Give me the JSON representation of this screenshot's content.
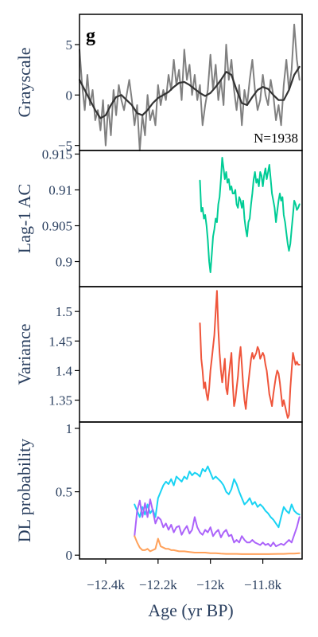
{
  "panel_label": "g",
  "x_axis": {
    "label": "Age (yr BP)",
    "range": [
      -12.5,
      -11.65
    ],
    "tick_values": [
      -12.4,
      -12.2,
      -12.0,
      -11.8
    ],
    "tick_labels": [
      "−12.4k",
      "−12.2k",
      "−12k",
      "−11.8k"
    ]
  },
  "chart_data": [
    {
      "type": "line",
      "panel": "grayscale",
      "ylabel": "Grayscale",
      "ylim": [
        -5.5,
        8
      ],
      "yticks": [
        -5,
        0,
        5
      ],
      "ytick_labels": [
        "−5",
        "0",
        "5"
      ],
      "annotation": "N=1938",
      "series": [
        {
          "color": "#808080",
          "x": [
            -12.5,
            -12.49,
            -12.48,
            -12.47,
            -12.46,
            -12.45,
            -12.44,
            -12.43,
            -12.42,
            -12.41,
            -12.4,
            -12.39,
            -12.38,
            -12.37,
            -12.36,
            -12.35,
            -12.34,
            -12.33,
            -12.32,
            -12.31,
            -12.3,
            -12.29,
            -12.28,
            -12.27,
            -12.26,
            -12.25,
            -12.24,
            -12.23,
            -12.22,
            -12.21,
            -12.2,
            -12.19,
            -12.18,
            -12.17,
            -12.16,
            -12.15,
            -12.14,
            -12.13,
            -12.12,
            -12.11,
            -12.1,
            -12.09,
            -12.08,
            -12.07,
            -12.06,
            -12.05,
            -12.04,
            -12.03,
            -12.02,
            -12.01,
            -12.0,
            -11.99,
            -11.98,
            -11.97,
            -11.96,
            -11.95,
            -11.94,
            -11.93,
            -11.92,
            -11.91,
            -11.9,
            -11.89,
            -11.88,
            -11.87,
            -11.86,
            -11.85,
            -11.84,
            -11.83,
            -11.82,
            -11.81,
            -11.8,
            -11.79,
            -11.78,
            -11.77,
            -11.76,
            -11.75,
            -11.74,
            -11.73,
            -11.72,
            -11.71,
            -11.7,
            -11.69,
            -11.68,
            -11.67,
            -11.66
          ],
          "y": [
            4.5,
            1.0,
            -1.5,
            2.0,
            -1.0,
            0.5,
            -2.5,
            -1.5,
            -3.5,
            -0.5,
            -5.0,
            -1.0,
            -4.0,
            0.5,
            -2.0,
            1.0,
            -0.5,
            -1.5,
            0.0,
            1.5,
            -0.5,
            -3.0,
            -1.0,
            -5.5,
            -2.0,
            -4.0,
            0.0,
            -2.5,
            -1.5,
            -3.0,
            1.0,
            -1.0,
            0.5,
            -0.5,
            2.0,
            0.5,
            3.5,
            1.0,
            2.5,
            -0.5,
            4.5,
            1.5,
            3.0,
            0.0,
            2.0,
            -0.5,
            1.0,
            -3.0,
            -1.0,
            0.5,
            4.0,
            0.5,
            3.0,
            -0.5,
            1.5,
            -1.0,
            5.0,
            1.5,
            3.5,
            0.5,
            -1.5,
            1.0,
            -3.0,
            0.5,
            -1.0,
            1.5,
            3.5,
            0.5,
            -1.5,
            -0.5,
            2.0,
            0.0,
            -1.0,
            1.5,
            0.0,
            -2.5,
            -1.0,
            -3.0,
            1.0,
            3.5,
            0.5,
            2.5,
            7.0,
            3.5,
            1.5
          ]
        },
        {
          "color": "#333333",
          "x": [
            -12.5,
            -12.48,
            -12.46,
            -12.44,
            -12.42,
            -12.4,
            -12.38,
            -12.36,
            -12.34,
            -12.32,
            -12.3,
            -12.28,
            -12.26,
            -12.24,
            -12.22,
            -12.2,
            -12.18,
            -12.16,
            -12.14,
            -12.12,
            -12.1,
            -12.08,
            -12.06,
            -12.04,
            -12.02,
            -12.0,
            -11.98,
            -11.96,
            -11.94,
            -11.92,
            -11.9,
            -11.88,
            -11.86,
            -11.84,
            -11.82,
            -11.8,
            -11.78,
            -11.76,
            -11.74,
            -11.72,
            -11.7,
            -11.68,
            -11.66
          ],
          "y": [
            1.5,
            0.5,
            -0.5,
            -1.5,
            -2.3,
            -2.0,
            -1.0,
            -0.2,
            0.0,
            -0.5,
            -1.0,
            -1.8,
            -2.0,
            -1.5,
            -0.8,
            -0.3,
            0.0,
            0.3,
            0.8,
            1.2,
            1.3,
            1.0,
            0.6,
            0.2,
            -0.1,
            0.2,
            0.8,
            1.5,
            2.3,
            2.0,
            0.5,
            -0.8,
            -1.0,
            -0.2,
            0.5,
            0.8,
            0.6,
            0.0,
            -0.5,
            -0.5,
            0.5,
            2.0,
            2.8
          ]
        }
      ]
    },
    {
      "type": "line",
      "panel": "lag1",
      "ylabel": "Lag-1 AC",
      "ylim": [
        0.8965,
        0.9155
      ],
      "yticks": [
        0.9,
        0.905,
        0.91,
        0.915
      ],
      "ytick_labels": [
        "0.9",
        "0.905",
        "0.91",
        "0.915"
      ],
      "series": [
        {
          "color": "#00cc96",
          "x": [
            -12.04,
            -12.035,
            -12.03,
            -12.025,
            -12.02,
            -12.015,
            -12.01,
            -12.005,
            -12.0,
            -11.995,
            -11.99,
            -11.985,
            -11.98,
            -11.975,
            -11.97,
            -11.965,
            -11.96,
            -11.955,
            -11.95,
            -11.945,
            -11.94,
            -11.935,
            -11.93,
            -11.925,
            -11.92,
            -11.915,
            -11.91,
            -11.905,
            -11.9,
            -11.895,
            -11.89,
            -11.885,
            -11.88,
            -11.875,
            -11.87,
            -11.865,
            -11.86,
            -11.855,
            -11.85,
            -11.845,
            -11.84,
            -11.835,
            -11.83,
            -11.825,
            -11.82,
            -11.815,
            -11.81,
            -11.805,
            -11.8,
            -11.795,
            -11.79,
            -11.785,
            -11.78,
            -11.775,
            -11.77,
            -11.765,
            -11.76,
            -11.755,
            -11.75,
            -11.745,
            -11.74,
            -11.735,
            -11.73,
            -11.725,
            -11.72,
            -11.715,
            -11.71,
            -11.705,
            -11.7,
            -11.695,
            -11.69,
            -11.685,
            -11.68,
            -11.675,
            -11.67,
            -11.665,
            -11.66
          ],
          "y": [
            0.9113,
            0.907,
            0.9075,
            0.906,
            0.9065,
            0.905,
            0.903,
            0.9,
            0.8985,
            0.901,
            0.9035,
            0.9045,
            0.906,
            0.9055,
            0.908,
            0.909,
            0.9115,
            0.9145,
            0.913,
            0.9115,
            0.9125,
            0.911,
            0.9115,
            0.91,
            0.9105,
            0.9095,
            0.9095,
            0.91,
            0.908,
            0.9075,
            0.909,
            0.9085,
            0.9075,
            0.9085,
            0.906,
            0.9045,
            0.9035,
            0.9055,
            0.906,
            0.908,
            0.9095,
            0.9115,
            0.9125,
            0.911,
            0.9115,
            0.9105,
            0.9125,
            0.912,
            0.9105,
            0.912,
            0.913,
            0.9115,
            0.9125,
            0.9135,
            0.9115,
            0.9095,
            0.9085,
            0.9075,
            0.9055,
            0.907,
            0.9085,
            0.9095,
            0.9085,
            0.909,
            0.9065,
            0.9055,
            0.904,
            0.9025,
            0.9015,
            0.9025,
            0.9045,
            0.9065,
            0.9085,
            0.908,
            0.9072,
            0.9075,
            0.908
          ]
        }
      ]
    },
    {
      "type": "line",
      "panel": "variance",
      "ylabel": "Variance",
      "ylim": [
        1.313,
        1.542
      ],
      "yticks": [
        1.35,
        1.4,
        1.45,
        1.5
      ],
      "ytick_labels": [
        "1.35",
        "1.4",
        "1.45",
        "1.5"
      ],
      "series": [
        {
          "color": "#ef553b",
          "x": [
            -12.04,
            -12.035,
            -12.03,
            -12.025,
            -12.02,
            -12.015,
            -12.01,
            -12.005,
            -12.0,
            -11.995,
            -11.99,
            -11.985,
            -11.98,
            -11.975,
            -11.97,
            -11.965,
            -11.96,
            -11.955,
            -11.95,
            -11.945,
            -11.94,
            -11.935,
            -11.93,
            -11.925,
            -11.92,
            -11.915,
            -11.91,
            -11.905,
            -11.9,
            -11.895,
            -11.89,
            -11.885,
            -11.88,
            -11.875,
            -11.87,
            -11.865,
            -11.86,
            -11.855,
            -11.85,
            -11.845,
            -11.84,
            -11.835,
            -11.83,
            -11.825,
            -11.82,
            -11.815,
            -11.81,
            -11.805,
            -11.8,
            -11.795,
            -11.79,
            -11.785,
            -11.78,
            -11.775,
            -11.77,
            -11.765,
            -11.76,
            -11.755,
            -11.75,
            -11.745,
            -11.74,
            -11.735,
            -11.73,
            -11.725,
            -11.72,
            -11.715,
            -11.71,
            -11.705,
            -11.7,
            -11.695,
            -11.69,
            -11.685,
            -11.68,
            -11.675,
            -11.67,
            -11.665,
            -11.66
          ],
          "y": [
            1.48,
            1.42,
            1.4,
            1.37,
            1.38,
            1.36,
            1.35,
            1.37,
            1.4,
            1.42,
            1.44,
            1.46,
            1.5,
            1.535,
            1.47,
            1.43,
            1.4,
            1.38,
            1.4,
            1.42,
            1.37,
            1.36,
            1.39,
            1.41,
            1.43,
            1.38,
            1.34,
            1.35,
            1.37,
            1.39,
            1.42,
            1.44,
            1.41,
            1.375,
            1.35,
            1.335,
            1.36,
            1.38,
            1.4,
            1.42,
            1.43,
            1.42,
            1.425,
            1.43,
            1.44,
            1.435,
            1.42,
            1.425,
            1.43,
            1.425,
            1.41,
            1.4,
            1.38,
            1.36,
            1.35,
            1.34,
            1.36,
            1.375,
            1.39,
            1.4,
            1.395,
            1.38,
            1.36,
            1.34,
            1.35,
            1.34,
            1.33,
            1.32,
            1.325,
            1.37,
            1.4,
            1.43,
            1.42,
            1.41,
            1.415,
            1.41,
            1.41
          ]
        }
      ]
    },
    {
      "type": "line",
      "panel": "dl",
      "ylabel": "DL probability",
      "ylim": [
        -0.03,
        1.05
      ],
      "yticks": [
        0,
        0.5,
        1
      ],
      "ytick_labels": [
        "0",
        "0.5",
        "1"
      ],
      "series": [
        {
          "color": "#19d3f3",
          "x": [
            -12.29,
            -12.28,
            -12.27,
            -12.26,
            -12.25,
            -12.24,
            -12.23,
            -12.22,
            -12.21,
            -12.2,
            -12.19,
            -12.18,
            -12.17,
            -12.16,
            -12.15,
            -12.14,
            -12.13,
            -12.12,
            -12.11,
            -12.1,
            -12.09,
            -12.08,
            -12.07,
            -12.06,
            -12.05,
            -12.04,
            -12.03,
            -12.02,
            -12.01,
            -12.0,
            -11.99,
            -11.98,
            -11.97,
            -11.96,
            -11.95,
            -11.94,
            -11.93,
            -11.92,
            -11.91,
            -11.9,
            -11.89,
            -11.88,
            -11.87,
            -11.86,
            -11.85,
            -11.84,
            -11.83,
            -11.82,
            -11.81,
            -11.8,
            -11.79,
            -11.78,
            -11.77,
            -11.76,
            -11.75,
            -11.74,
            -11.73,
            -11.72,
            -11.71,
            -11.7,
            -11.69,
            -11.68,
            -11.67,
            -11.66
          ],
          "y": [
            0.4,
            0.35,
            0.3,
            0.38,
            0.32,
            0.4,
            0.33,
            0.36,
            0.3,
            0.45,
            0.5,
            0.55,
            0.58,
            0.56,
            0.6,
            0.55,
            0.62,
            0.6,
            0.58,
            0.62,
            0.6,
            0.66,
            0.63,
            0.65,
            0.64,
            0.62,
            0.68,
            0.66,
            0.7,
            0.65,
            0.6,
            0.62,
            0.6,
            0.58,
            0.55,
            0.5,
            0.48,
            0.52,
            0.6,
            0.56,
            0.5,
            0.45,
            0.4,
            0.42,
            0.45,
            0.4,
            0.42,
            0.38,
            0.4,
            0.38,
            0.35,
            0.33,
            0.3,
            0.28,
            0.25,
            0.22,
            0.3,
            0.38,
            0.35,
            0.33,
            0.4,
            0.35,
            0.33,
            0.32
          ]
        },
        {
          "color": "#ab63fa",
          "x": [
            -12.29,
            -12.28,
            -12.27,
            -12.26,
            -12.25,
            -12.24,
            -12.23,
            -12.22,
            -12.21,
            -12.2,
            -12.19,
            -12.18,
            -12.17,
            -12.16,
            -12.15,
            -12.14,
            -12.13,
            -12.12,
            -12.11,
            -12.1,
            -12.09,
            -12.08,
            -12.07,
            -12.06,
            -12.05,
            -12.04,
            -12.03,
            -12.02,
            -12.01,
            -12.0,
            -11.99,
            -11.98,
            -11.97,
            -11.96,
            -11.95,
            -11.94,
            -11.93,
            -11.92,
            -11.91,
            -11.9,
            -11.89,
            -11.88,
            -11.87,
            -11.86,
            -11.85,
            -11.84,
            -11.83,
            -11.82,
            -11.81,
            -11.8,
            -11.79,
            -11.78,
            -11.77,
            -11.76,
            -11.75,
            -11.74,
            -11.73,
            -11.72,
            -11.71,
            -11.7,
            -11.69,
            -11.68,
            -11.67,
            -11.66
          ],
          "y": [
            0.15,
            0.35,
            0.43,
            0.3,
            0.41,
            0.3,
            0.44,
            0.35,
            0.25,
            0.3,
            0.28,
            0.22,
            0.25,
            0.2,
            0.24,
            0.18,
            0.22,
            0.23,
            0.16,
            0.2,
            0.23,
            0.17,
            0.2,
            0.3,
            0.22,
            0.18,
            0.16,
            0.2,
            0.18,
            0.22,
            0.15,
            0.18,
            0.2,
            0.14,
            0.18,
            0.2,
            0.15,
            0.16,
            0.1,
            0.12,
            0.1,
            0.15,
            0.12,
            0.1,
            0.1,
            0.12,
            0.1,
            0.09,
            0.08,
            0.1,
            0.08,
            0.09,
            0.07,
            0.1,
            0.07,
            0.08,
            0.09,
            0.08,
            0.1,
            0.12,
            0.1,
            0.16,
            0.22,
            0.3
          ]
        },
        {
          "color": "#ffa15a",
          "x": [
            -12.29,
            -12.28,
            -12.27,
            -12.26,
            -12.25,
            -12.24,
            -12.23,
            -12.22,
            -12.21,
            -12.2,
            -12.19,
            -12.18,
            -12.17,
            -12.16,
            -12.15,
            -12.14,
            -12.12,
            -12.1,
            -12.08,
            -12.06,
            -12.04,
            -12.02,
            -12.0,
            -11.98,
            -11.96,
            -11.94,
            -11.92,
            -11.9,
            -11.88,
            -11.86,
            -11.84,
            -11.82,
            -11.8,
            -11.78,
            -11.76,
            -11.74,
            -11.72,
            -11.7,
            -11.68,
            -11.66
          ],
          "y": [
            0.15,
            0.1,
            0.06,
            0.04,
            0.04,
            0.05,
            0.03,
            0.04,
            0.05,
            0.13,
            0.07,
            0.06,
            0.05,
            0.05,
            0.04,
            0.04,
            0.03,
            0.03,
            0.025,
            0.02,
            0.02,
            0.02,
            0.015,
            0.015,
            0.012,
            0.01,
            0.01,
            0.01,
            0.008,
            0.008,
            0.008,
            0.008,
            0.008,
            0.008,
            0.009,
            0.01,
            0.01,
            0.012,
            0.012,
            0.015
          ]
        }
      ]
    }
  ]
}
